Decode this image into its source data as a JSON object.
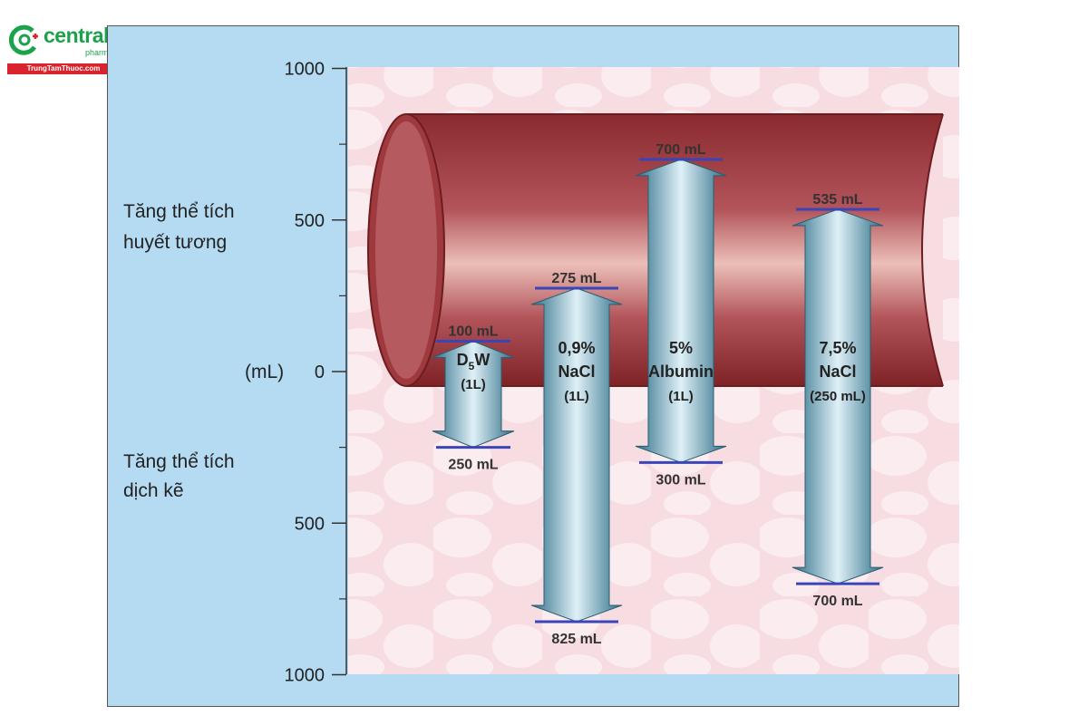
{
  "brand": {
    "name": "central",
    "subname": "pharmacy",
    "website": "TrungTamThuoc.com",
    "color": "#1aa34a",
    "bar_color": "#d9232d"
  },
  "labels": {
    "plasma": [
      "Tăng thể tích",
      "huyết tương"
    ],
    "interstitial": [
      "Tăng thể tích",
      "dịch kẽ"
    ],
    "unit": "(mL)"
  },
  "axis": {
    "ticks": [
      "1000",
      "500",
      "0",
      "500",
      "1000"
    ],
    "tick_values": [
      1000,
      500,
      0,
      -500,
      -1000
    ]
  },
  "arrows": [
    {
      "name": "d5w",
      "title_lines": [
        "D",
        "(1L)"
      ],
      "title_sub": "5",
      "title_suffix": "W",
      "plasma": 100,
      "interstitial": 250,
      "top_label": "100 mL",
      "bottom_label": "250 mL"
    },
    {
      "name": "nacl-09",
      "title_lines": [
        "0,9%",
        "NaCl",
        "(1L)"
      ],
      "plasma": 275,
      "interstitial": 825,
      "top_label": "275 mL",
      "bottom_label": "825 mL"
    },
    {
      "name": "albumin-5",
      "title_lines": [
        "5%",
        "Albumin",
        "(1L)"
      ],
      "plasma": 700,
      "interstitial": 300,
      "top_label": "700 mL",
      "bottom_label": "300 mL"
    },
    {
      "name": "nacl-75",
      "title_lines": [
        "7,5%",
        "NaCl",
        "(250 mL)"
      ],
      "plasma": 535,
      "interstitial": 700,
      "top_label": "535 mL",
      "bottom_label": "700 mL"
    }
  ],
  "colors": {
    "panel_blue": "#b5dbf2",
    "tissue_pink": "#f8e0e4",
    "vessel_dark": "#8c2a2e",
    "vessel_light": "#e9b4ae",
    "arrow_light": "#dbeef6",
    "arrow_dark": "#2e6f88",
    "marker_blue": "#3a45b8"
  }
}
